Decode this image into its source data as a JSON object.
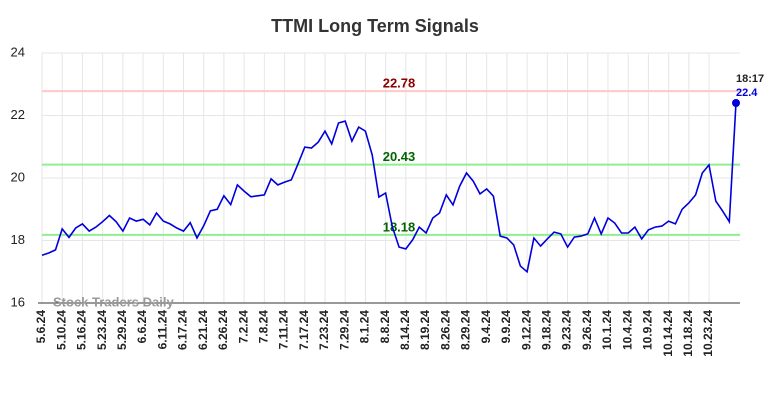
{
  "chart_data": {
    "type": "line",
    "title": "TTMI Long Term Signals",
    "watermark": "Stock Traders Daily",
    "color": "#0000dd",
    "categories": [
      "5.6.24",
      null,
      null,
      "5.10.24",
      null,
      null,
      "5.16.24",
      null,
      null,
      "5.23.24",
      null,
      null,
      "5.29.24",
      null,
      null,
      "6.6.24",
      null,
      null,
      "6.11.24",
      null,
      null,
      "6.17.24",
      null,
      null,
      "6.21.24",
      null,
      null,
      "6.26.24",
      null,
      null,
      "7.2.24",
      null,
      null,
      "7.8.24",
      null,
      null,
      "7.11.24",
      null,
      null,
      "7.17.24",
      null,
      null,
      "7.23.24",
      null,
      null,
      "7.29.24",
      null,
      null,
      "8.1.24",
      null,
      null,
      "8.8.24",
      null,
      null,
      "8.14.24",
      null,
      null,
      "8.19.24",
      null,
      null,
      "8.26.24",
      null,
      null,
      "8.29.24",
      null,
      null,
      "9.4.24",
      null,
      null,
      "9.9.24",
      null,
      null,
      "9.12.24",
      null,
      null,
      "9.18.24",
      null,
      null,
      "9.23.24",
      null,
      null,
      "9.26.24",
      null,
      null,
      "10.1.24",
      null,
      null,
      "10.4.24",
      null,
      null,
      "10.9.24",
      null,
      null,
      "10.14.24",
      null,
      null,
      "10.18.24",
      null,
      null,
      "10.23.24",
      null,
      null,
      null,
      null
    ],
    "values": [
      17.53,
      17.6,
      17.7,
      18.37,
      18.1,
      18.4,
      18.53,
      18.3,
      18.43,
      18.6,
      18.8,
      18.6,
      18.3,
      18.72,
      18.62,
      18.68,
      18.5,
      18.88,
      18.62,
      18.53,
      18.4,
      18.3,
      18.57,
      18.08,
      18.47,
      18.95,
      19.0,
      19.43,
      19.15,
      19.78,
      19.58,
      19.4,
      19.43,
      19.46,
      19.97,
      19.78,
      19.87,
      19.94,
      20.45,
      20.99,
      20.96,
      21.15,
      21.5,
      21.09,
      21.76,
      21.82,
      21.18,
      21.63,
      21.5,
      20.74,
      19.39,
      19.52,
      18.43,
      17.79,
      17.73,
      18.02,
      18.43,
      18.24,
      18.72,
      18.88,
      19.46,
      19.14,
      19.74,
      20.16,
      19.9,
      19.49,
      19.65,
      19.42,
      18.14,
      18.08,
      17.86,
      17.18,
      17.0,
      18.08,
      17.82,
      18.05,
      18.27,
      18.21,
      17.79,
      18.11,
      18.14,
      18.21,
      18.72,
      18.21,
      18.72,
      18.56,
      18.24,
      18.24,
      18.43,
      18.05,
      18.34,
      18.43,
      18.46,
      18.62,
      18.53,
      19.0,
      19.2,
      19.46,
      20.16,
      20.42,
      19.26,
      18.95,
      18.6,
      22.4
    ],
    "last_time": "18:17",
    "hlines": [
      {
        "value": 22.78,
        "color": "#ffc8c8",
        "label_color": "#8b0000"
      },
      {
        "value": 20.43,
        "color": "#90ee90",
        "label_color": "#006400"
      },
      {
        "value": 18.18,
        "color": "#90ee90",
        "label_color": "#006400"
      }
    ],
    "ylim": [
      16,
      24
    ],
    "yticks": [
      16,
      18,
      20,
      22,
      24
    ],
    "grid": true
  }
}
